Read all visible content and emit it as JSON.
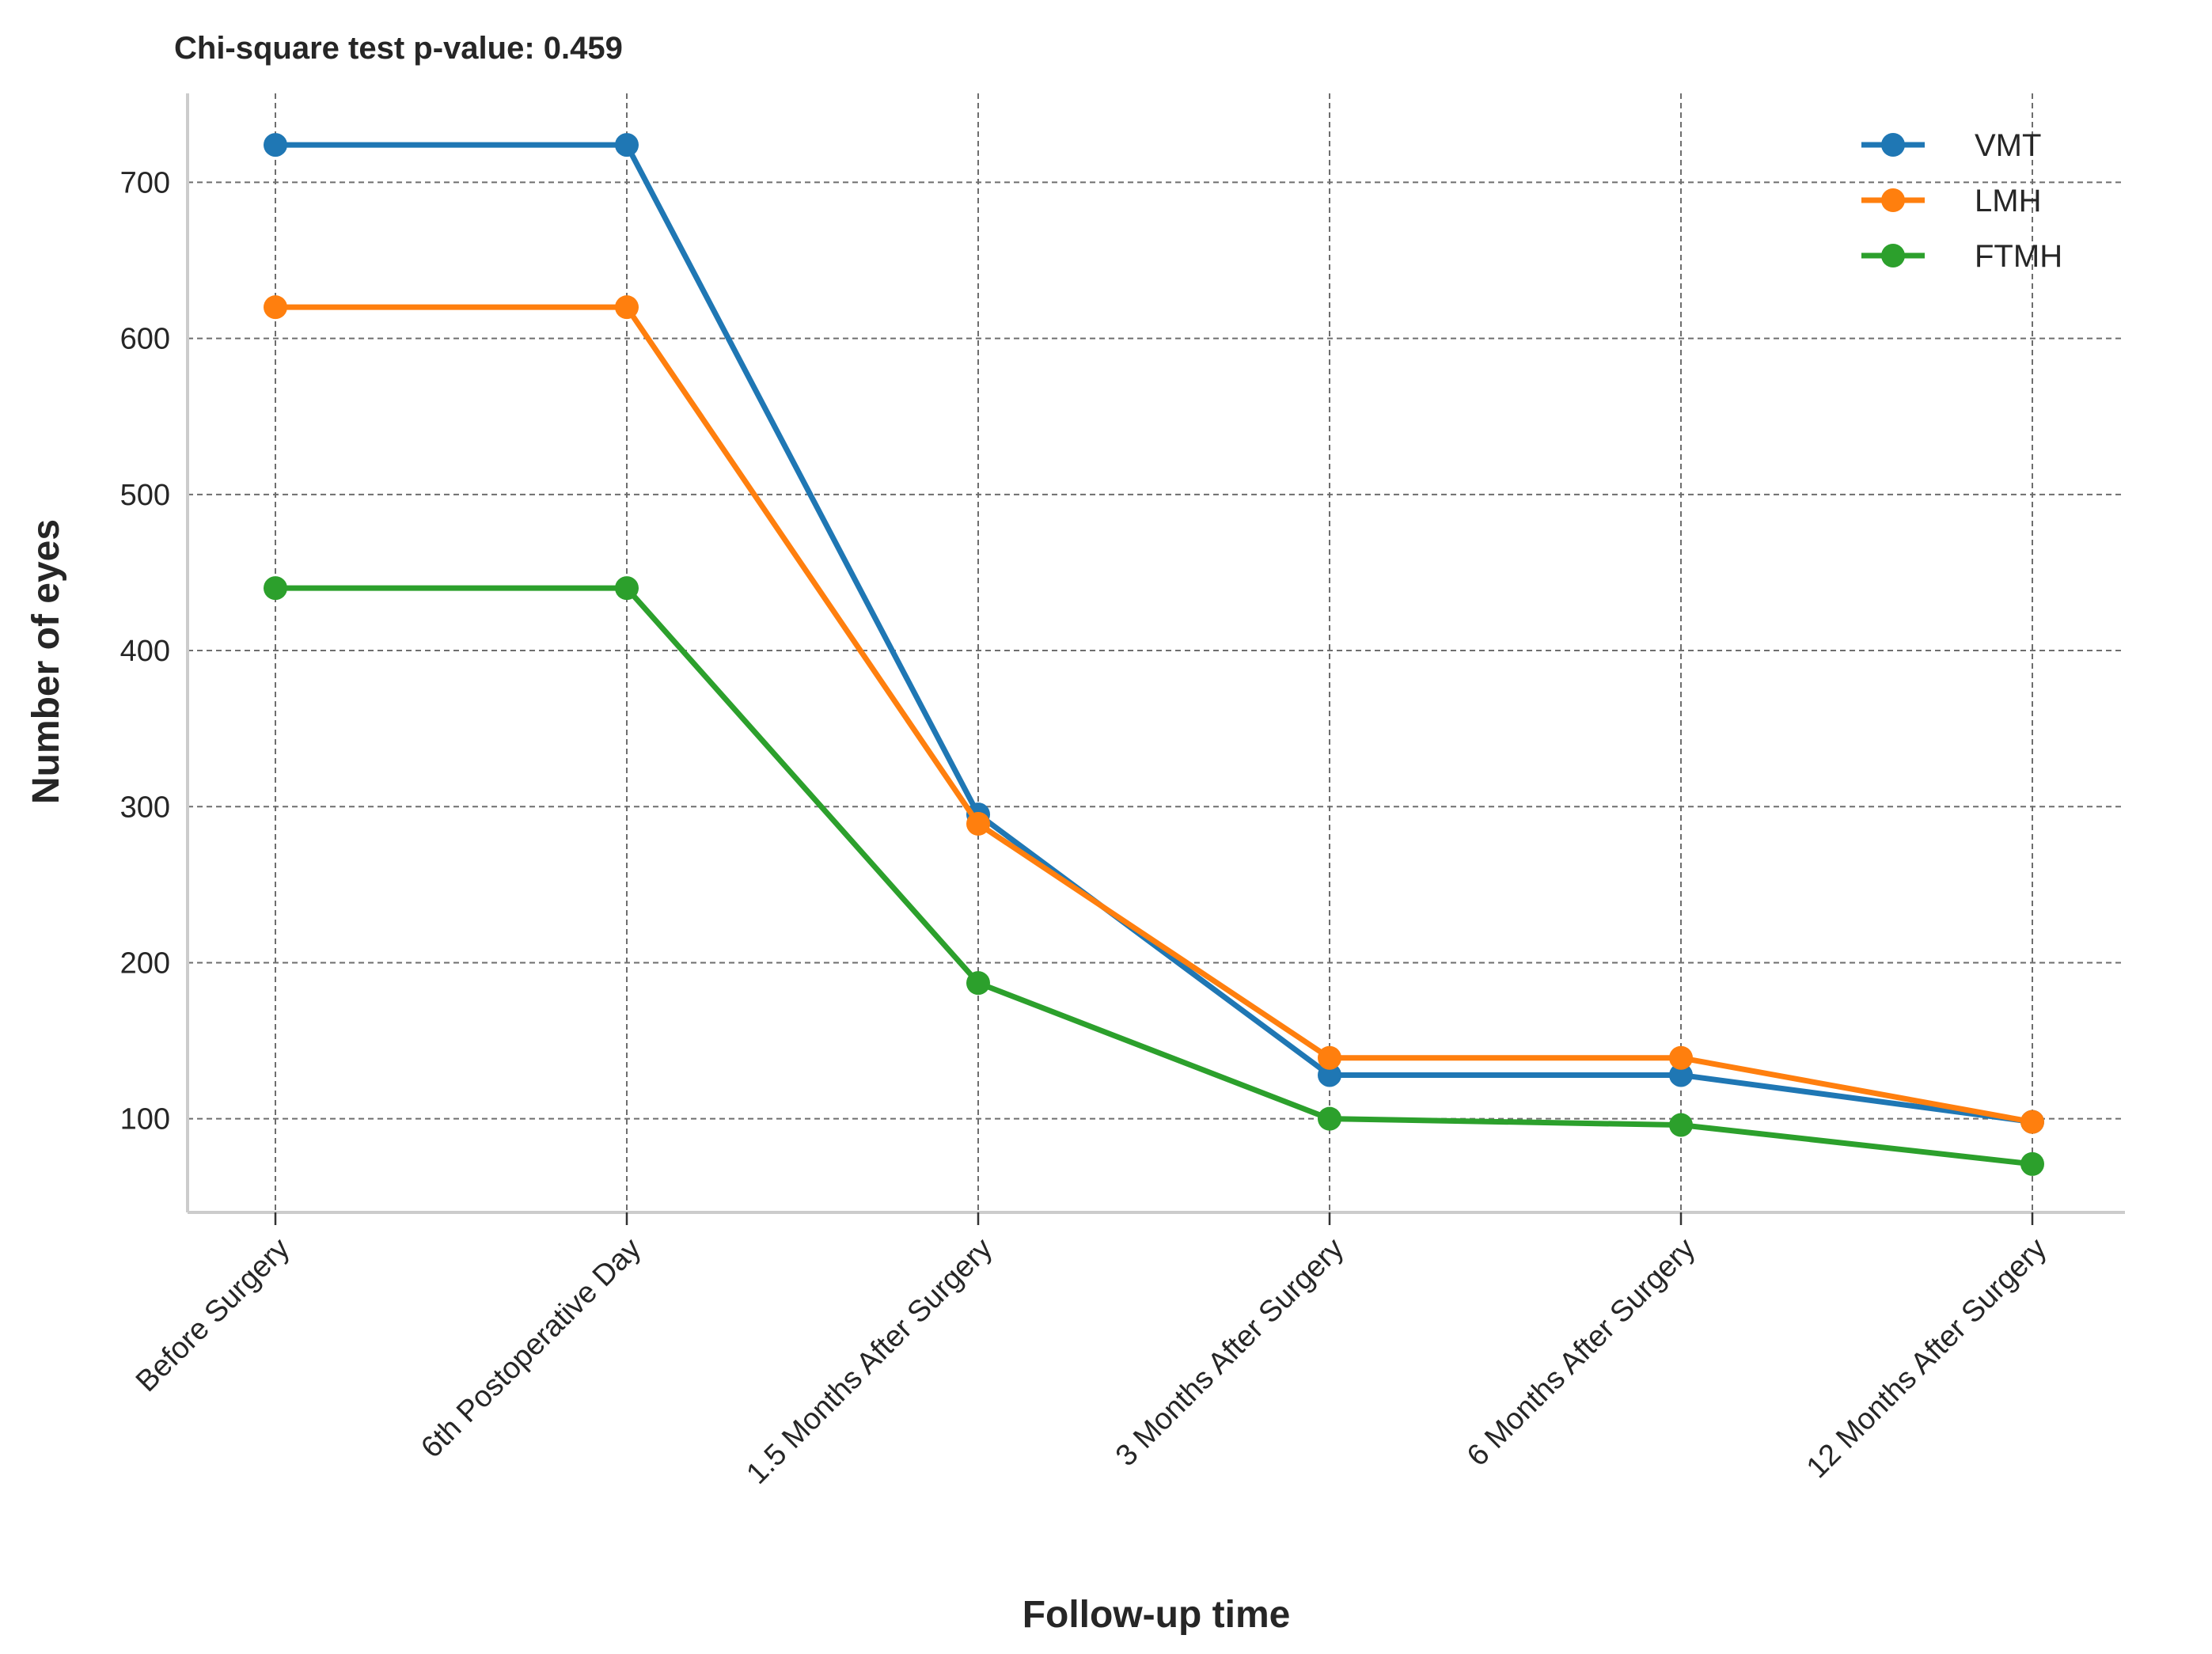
{
  "chart_data": {
    "type": "line",
    "title": "Chi-square test p-value: 0.459",
    "xlabel": "Follow-up time",
    "ylabel": "Number of eyes",
    "categories": [
      "Before Surgery",
      "6th Postoperative Day",
      "1.5 Months After Surgery",
      "3 Months After Surgery",
      "6 Months After Surgery",
      "12 Months After Surgery"
    ],
    "ylim": [
      40,
      757
    ],
    "yticks": [
      100,
      200,
      300,
      400,
      500,
      600,
      700
    ],
    "grid": true,
    "legend_position": "top-right",
    "series": [
      {
        "name": "VMT",
        "color": "#1f77b4",
        "values": [
          724,
          724,
          295,
          128,
          128,
          98
        ]
      },
      {
        "name": "LMH",
        "color": "#ff7f0e",
        "values": [
          620,
          620,
          289,
          139,
          139,
          98
        ]
      },
      {
        "name": "FTMH",
        "color": "#2ca02c",
        "values": [
          440,
          440,
          187,
          100,
          96,
          71
        ]
      }
    ]
  }
}
